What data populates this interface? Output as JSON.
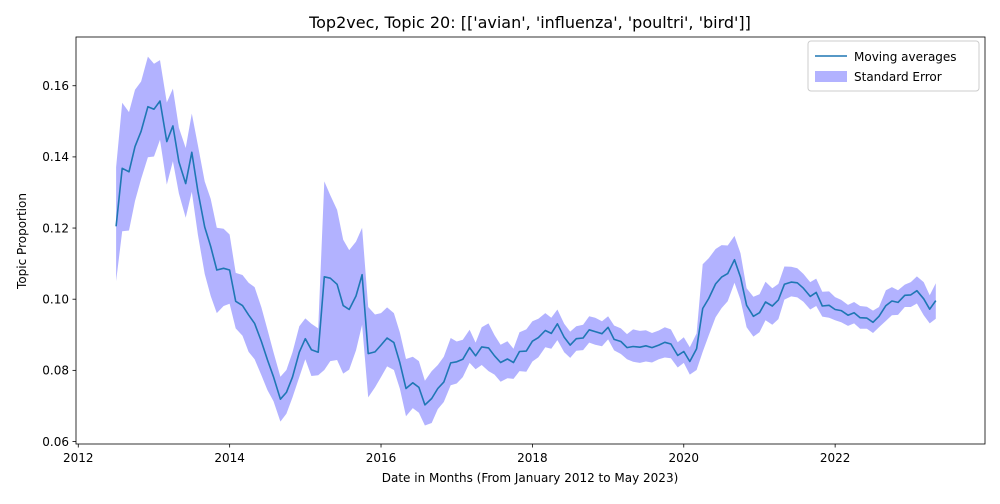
{
  "chart_data": {
    "type": "line",
    "title": "Top2vec, Topic 20: [['avian', 'influenza', 'poultri', 'bird']]",
    "xlabel": "Date in Months (From January 2012 to May 2023)",
    "ylabel": "Topic Proportion",
    "xlim": [
      2011.97,
      2023.98
    ],
    "ylim": [
      0.0593,
      0.1737
    ],
    "x_ticks": [
      {
        "value": 2012,
        "label": "2012"
      },
      {
        "value": 2014,
        "label": "2014"
      },
      {
        "value": 2016,
        "label": "2016"
      },
      {
        "value": 2018,
        "label": "2018"
      },
      {
        "value": 2020,
        "label": "2020"
      },
      {
        "value": 2022,
        "label": "2022"
      }
    ],
    "y_ticks": [
      {
        "value": 0.06,
        "label": "0.06"
      },
      {
        "value": 0.08,
        "label": "0.08"
      },
      {
        "value": 0.1,
        "label": "0.10"
      },
      {
        "value": 0.12,
        "label": "0.12"
      },
      {
        "value": 0.14,
        "label": "0.14"
      },
      {
        "value": 0.16,
        "label": "0.16"
      }
    ],
    "grid": false,
    "legend": {
      "placement": "top-right",
      "entries": [
        {
          "label": "Moving averages",
          "kind": "line",
          "color": "#1f77b4"
        },
        {
          "label": "Standard Error",
          "kind": "band",
          "color": "#0000ff",
          "opacity": 0.3
        }
      ]
    },
    "series": [
      {
        "name": "Moving averages",
        "color": "#1f77b4",
        "x": [
          2012.5,
          2012.58,
          2012.67,
          2012.75,
          2012.83,
          2012.92,
          2013.0,
          2013.08,
          2013.17,
          2013.25,
          2013.33,
          2013.42,
          2013.5,
          2013.58,
          2013.67,
          2013.75,
          2013.83,
          2013.92,
          2014.0,
          2014.08,
          2014.17,
          2014.25,
          2014.33,
          2014.42,
          2014.5,
          2014.58,
          2014.67,
          2014.75,
          2014.83,
          2014.92,
          2015.0,
          2015.08,
          2015.17,
          2015.25,
          2015.33,
          2015.42,
          2015.5,
          2015.58,
          2015.67,
          2015.75,
          2015.83,
          2015.92,
          2016.0,
          2016.08,
          2016.17,
          2016.25,
          2016.33,
          2016.42,
          2016.5,
          2016.58,
          2016.67,
          2016.75,
          2016.83,
          2016.92,
          2017.0,
          2017.08,
          2017.17,
          2017.25,
          2017.33,
          2017.42,
          2017.5,
          2017.58,
          2017.67,
          2017.75,
          2017.83,
          2017.92,
          2018.0,
          2018.08,
          2018.17,
          2018.25,
          2018.33,
          2018.42,
          2018.5,
          2018.58,
          2018.67,
          2018.75,
          2018.83,
          2018.92,
          2019.0,
          2019.08,
          2019.17,
          2019.25,
          2019.33,
          2019.42,
          2019.5,
          2019.58,
          2019.67,
          2019.75,
          2019.83,
          2019.92,
          2020.0,
          2020.08,
          2020.17,
          2020.25,
          2020.33,
          2020.42,
          2020.5,
          2020.58,
          2020.67,
          2020.75,
          2020.83,
          2020.92,
          2021.0,
          2021.08,
          2021.17,
          2021.25,
          2021.33,
          2021.42,
          2021.5,
          2021.58,
          2021.67,
          2021.75,
          2021.83,
          2021.92,
          2022.0,
          2022.08,
          2022.17,
          2022.25,
          2022.33,
          2022.42,
          2022.5,
          2022.58,
          2022.67,
          2022.75,
          2022.83,
          2022.92,
          2023.0,
          2023.08,
          2023.17,
          2023.25,
          2023.33
        ],
        "values": [
          0.1205,
          0.1368,
          0.1358,
          0.1429,
          0.1472,
          0.1541,
          0.1534,
          0.1557,
          0.1443,
          0.1487,
          0.1386,
          0.1325,
          0.1413,
          0.1303,
          0.1203,
          0.1148,
          0.1082,
          0.1087,
          0.1082,
          0.0994,
          0.0982,
          0.0956,
          0.0932,
          0.0881,
          0.0829,
          0.0782,
          0.0719,
          0.0738,
          0.0781,
          0.0851,
          0.0889,
          0.0858,
          0.0851,
          0.1063,
          0.1059,
          0.1042,
          0.0982,
          0.0971,
          0.1009,
          0.1069,
          0.0847,
          0.0852,
          0.0871,
          0.0891,
          0.0878,
          0.0821,
          0.0749,
          0.0765,
          0.0752,
          0.0703,
          0.0721,
          0.0749,
          0.0767,
          0.0821,
          0.0824,
          0.0831,
          0.0864,
          0.0841,
          0.0866,
          0.0863,
          0.0841,
          0.0822,
          0.0832,
          0.0822,
          0.0853,
          0.0854,
          0.0882,
          0.0892,
          0.0912,
          0.0904,
          0.0931,
          0.0893,
          0.0871,
          0.0889,
          0.0891,
          0.0914,
          0.0909,
          0.0903,
          0.0921,
          0.0887,
          0.0881,
          0.0864,
          0.0867,
          0.0865,
          0.0869,
          0.0864,
          0.0871,
          0.0879,
          0.0874,
          0.0842,
          0.0853,
          0.0825,
          0.0861,
          0.0974,
          0.1002,
          0.1043,
          0.1062,
          0.1072,
          0.1111,
          0.1062,
          0.0983,
          0.0952,
          0.0962,
          0.0992,
          0.0981,
          0.0998,
          0.1042,
          0.1048,
          0.1046,
          0.1031,
          0.1008,
          0.1019,
          0.0981,
          0.0983,
          0.0971,
          0.0968,
          0.0955,
          0.0962,
          0.0948,
          0.0947,
          0.0935,
          0.0952,
          0.0982,
          0.0995,
          0.0991,
          0.1011,
          0.1012,
          0.1024,
          0.1001,
          0.0972,
          0.0996
        ]
      }
    ],
    "error_band": {
      "name": "Standard Error",
      "color": "#0000ff",
      "opacity": 0.3,
      "upper": [
        0.1371,
        0.1552,
        0.1526,
        0.1589,
        0.1612,
        0.1682,
        0.1662,
        0.1672,
        0.1553,
        0.1592,
        0.1482,
        0.1425,
        0.1522,
        0.1433,
        0.1331,
        0.1282,
        0.1201,
        0.1198,
        0.1182,
        0.1074,
        0.1068,
        0.1046,
        0.1034,
        0.0977,
        0.0914,
        0.0851,
        0.0782,
        0.0801,
        0.0851,
        0.0924,
        0.0946,
        0.0931,
        0.0918,
        0.1331,
        0.1292,
        0.1251,
        0.1167,
        0.1138,
        0.1162,
        0.1201,
        0.0978,
        0.0957,
        0.0961,
        0.0977,
        0.0961,
        0.0906,
        0.0832,
        0.0838,
        0.0826,
        0.0771,
        0.0798,
        0.0815,
        0.0838,
        0.0891,
        0.0881,
        0.0886,
        0.0914,
        0.0878,
        0.0921,
        0.0932,
        0.0899,
        0.0872,
        0.0882,
        0.0861,
        0.0907,
        0.0915,
        0.0938,
        0.0945,
        0.0961,
        0.0948,
        0.0971,
        0.0931,
        0.0909,
        0.0924,
        0.0928,
        0.0952,
        0.0948,
        0.0938,
        0.0952,
        0.0926,
        0.0918,
        0.0902,
        0.0915,
        0.0911,
        0.0913,
        0.0905,
        0.0912,
        0.0921,
        0.0915,
        0.0879,
        0.0893,
        0.0865,
        0.0904,
        0.1098,
        0.1115,
        0.1141,
        0.1152,
        0.1151,
        0.1178,
        0.1129,
        0.1031,
        0.1007,
        0.1014,
        0.1049,
        0.1031,
        0.1043,
        0.1092,
        0.1091,
        0.1087,
        0.1071,
        0.1048,
        0.1058,
        0.1021,
        0.1022,
        0.1006,
        0.0998,
        0.0984,
        0.0992,
        0.0981,
        0.0979,
        0.0968,
        0.0978,
        0.1025,
        0.1034,
        0.1025,
        0.1041,
        0.1048,
        0.1064,
        0.1048,
        0.1011,
        0.1045
      ],
      "lower": [
        0.1051,
        0.1191,
        0.1193,
        0.1276,
        0.1338,
        0.1399,
        0.1401,
        0.1448,
        0.1322,
        0.1388,
        0.1297,
        0.1229,
        0.1302,
        0.1181,
        0.1071,
        0.1009,
        0.0961,
        0.0981,
        0.0987,
        0.0918,
        0.0897,
        0.0852,
        0.0831,
        0.0786,
        0.0744,
        0.0713,
        0.0656,
        0.0678,
        0.0724,
        0.0781,
        0.0831,
        0.0784,
        0.0786,
        0.0801,
        0.0826,
        0.0829,
        0.0791,
        0.0802,
        0.0856,
        0.0928,
        0.0724,
        0.0752,
        0.0781,
        0.0811,
        0.0801,
        0.0748,
        0.0671,
        0.0694,
        0.0681,
        0.0645,
        0.0652,
        0.0691,
        0.0711,
        0.0758,
        0.0763,
        0.0781,
        0.0821,
        0.0803,
        0.0815,
        0.0798,
        0.0788,
        0.0768,
        0.0778,
        0.0776,
        0.0798,
        0.0796,
        0.0825,
        0.0837,
        0.0865,
        0.0861,
        0.0885,
        0.0851,
        0.0835,
        0.0855,
        0.0857,
        0.0878,
        0.0872,
        0.0868,
        0.0887,
        0.0856,
        0.0846,
        0.0831,
        0.0824,
        0.0821,
        0.0825,
        0.0822,
        0.0831,
        0.0836,
        0.0834,
        0.0808,
        0.0821,
        0.0788,
        0.0801,
        0.0852,
        0.0898,
        0.0949,
        0.0975,
        0.0994,
        0.1046,
        0.0998,
        0.0921,
        0.0895,
        0.0907,
        0.0941,
        0.0928,
        0.0944,
        0.0999,
        0.1008,
        0.1005,
        0.0993,
        0.0971,
        0.0981,
        0.0951,
        0.0948,
        0.0941,
        0.0935,
        0.0925,
        0.0932,
        0.0917,
        0.0917,
        0.0905,
        0.0921,
        0.0939,
        0.0955,
        0.0956,
        0.0978,
        0.0978,
        0.0988,
        0.0955,
        0.0932,
        0.0945
      ]
    }
  }
}
